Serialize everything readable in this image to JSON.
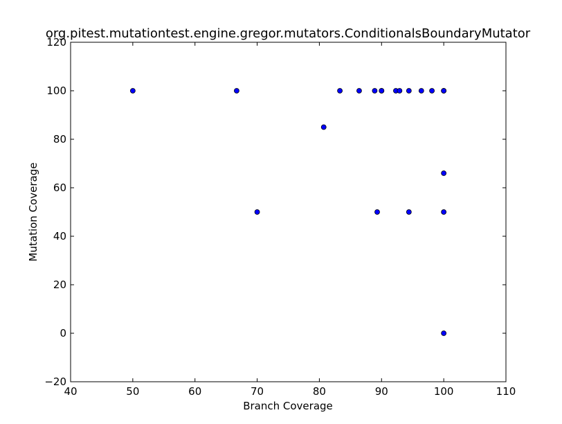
{
  "chart_data": {
    "type": "scatter",
    "title": "org.pitest.mutationtest.engine.gregor.mutators.ConditionalsBoundaryMutator",
    "xlabel": "Branch Coverage",
    "ylabel": "Mutation Coverage",
    "xlim": [
      40,
      110
    ],
    "ylim": [
      -20,
      120
    ],
    "xticks": [
      40,
      50,
      60,
      70,
      80,
      90,
      100,
      110
    ],
    "yticks": [
      -20,
      0,
      20,
      40,
      60,
      80,
      100,
      120
    ],
    "xtick_labels": [
      "40",
      "50",
      "60",
      "70",
      "80",
      "90",
      "100",
      "110"
    ],
    "ytick_labels": [
      "−20",
      "0",
      "20",
      "40",
      "60",
      "80",
      "100",
      "120"
    ],
    "grid": false,
    "marker_color": "#0000ff",
    "marker_edge_color": "#000000",
    "points": [
      {
        "x": 50.0,
        "y": 100
      },
      {
        "x": 66.7,
        "y": 100
      },
      {
        "x": 83.3,
        "y": 100
      },
      {
        "x": 86.4,
        "y": 100
      },
      {
        "x": 88.9,
        "y": 100
      },
      {
        "x": 90.0,
        "y": 100
      },
      {
        "x": 90.0,
        "y": 100
      },
      {
        "x": 92.3,
        "y": 100
      },
      {
        "x": 92.9,
        "y": 100
      },
      {
        "x": 94.4,
        "y": 100
      },
      {
        "x": 96.4,
        "y": 100
      },
      {
        "x": 98.1,
        "y": 100
      },
      {
        "x": 100.0,
        "y": 100
      },
      {
        "x": 100.0,
        "y": 100
      },
      {
        "x": 80.7,
        "y": 85
      },
      {
        "x": 100.0,
        "y": 66
      },
      {
        "x": 70.0,
        "y": 50
      },
      {
        "x": 89.3,
        "y": 50
      },
      {
        "x": 94.4,
        "y": 50
      },
      {
        "x": 100.0,
        "y": 50
      },
      {
        "x": 100.0,
        "y": 0
      }
    ]
  }
}
